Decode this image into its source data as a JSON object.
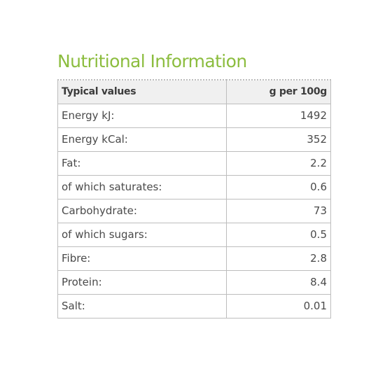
{
  "title": "Nutritional Information",
  "table": {
    "header": {
      "label": "Typical values",
      "value": "g per 100g"
    },
    "rows": [
      {
        "label": "Energy kJ:",
        "value": "1492"
      },
      {
        "label": "Energy kCal:",
        "value": "352"
      },
      {
        "label": "Fat:",
        "value": "2.2"
      },
      {
        "label": "of which saturates:",
        "value": "0.6"
      },
      {
        "label": "Carbohydrate:",
        "value": "73"
      },
      {
        "label": "of which sugars:",
        "value": "0.5"
      },
      {
        "label": "Fibre:",
        "value": "2.8"
      },
      {
        "label": "Protein:",
        "value": "8.4"
      },
      {
        "label": "Salt:",
        "value": "0.01"
      }
    ]
  },
  "colors": {
    "title": "#8cbd3f",
    "header_background": "#f0f0f0",
    "border": "#bdbdbd",
    "text": "#4a4a4a"
  }
}
